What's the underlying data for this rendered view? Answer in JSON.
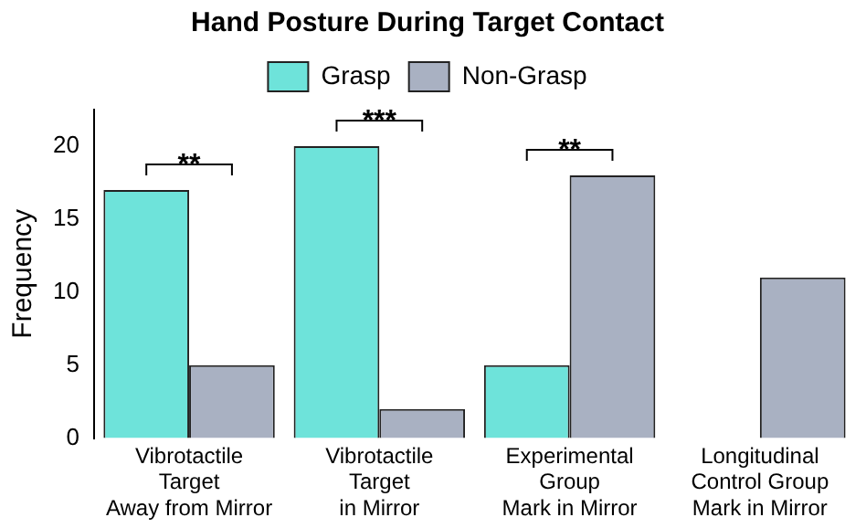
{
  "chart_data": {
    "type": "bar",
    "title": "Hand Posture During Target Contact",
    "ylabel": "Frequency",
    "categories": [
      "Vibrotactile\nTarget\nAway from Mirror",
      "Vibrotactile\nTarget\nin Mirror",
      "Experimental\nGroup\nMark in Mirror",
      "Longitudinal\nControl Group\nMark in Mirror"
    ],
    "series": [
      {
        "name": "Grasp",
        "color": "#6ee3da",
        "values": [
          17,
          20,
          5,
          0
        ]
      },
      {
        "name": "Non-Grasp",
        "color": "#a9b1c2",
        "values": [
          5,
          2,
          18,
          11
        ]
      }
    ],
    "ylim": [
      0,
      22.5
    ],
    "yticks": [
      0,
      5,
      10,
      15,
      20
    ],
    "grid": false,
    "legend": "top",
    "annotations": [
      "**",
      "***",
      "**"
    ]
  }
}
